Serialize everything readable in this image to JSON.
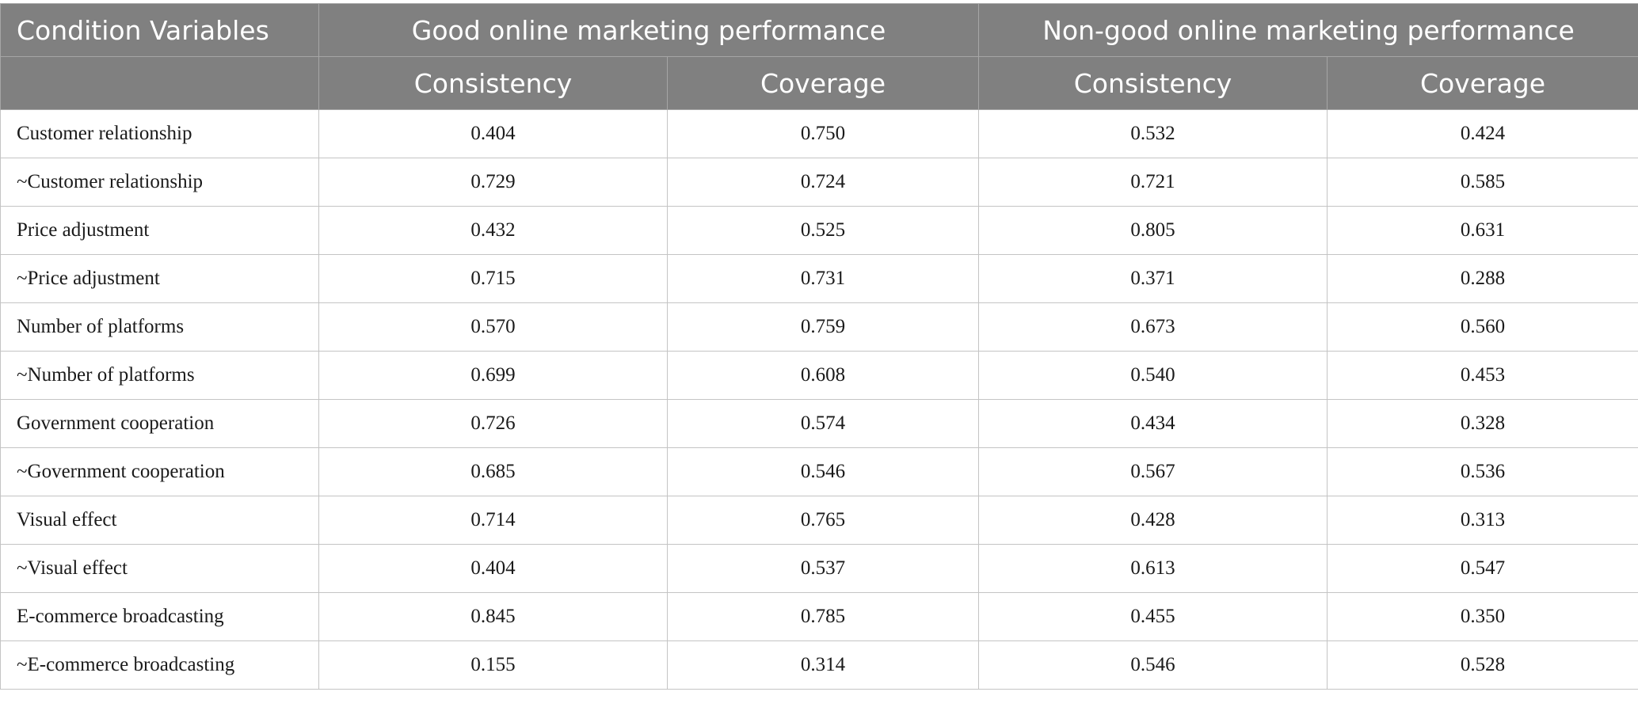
{
  "table": {
    "header": {
      "condition_variables": "Condition Variables",
      "group_good": "Good online marketing performance",
      "group_nongood": "Non-good online marketing performance",
      "good_consistency": "Consistency",
      "good_coverage": "Coverage",
      "nongood_consistency": "Consistency",
      "nongood_coverage": "Coverage"
    },
    "rows": [
      {
        "variable": "Customer relationship",
        "good_consistency": "0.404",
        "good_coverage": "0.750",
        "nongood_consistency": "0.532",
        "nongood_coverage": "0.424"
      },
      {
        "variable": "~Customer relationship",
        "good_consistency": "0.729",
        "good_coverage": "0.724",
        "nongood_consistency": "0.721",
        "nongood_coverage": "0.585"
      },
      {
        "variable": "Price adjustment",
        "good_consistency": "0.432",
        "good_coverage": "0.525",
        "nongood_consistency": "0.805",
        "nongood_coverage": "0.631"
      },
      {
        "variable": "~Price adjustment",
        "good_consistency": "0.715",
        "good_coverage": "0.731",
        "nongood_consistency": "0.371",
        "nongood_coverage": "0.288"
      },
      {
        "variable": "Number of platforms",
        "good_consistency": "0.570",
        "good_coverage": "0.759",
        "nongood_consistency": "0.673",
        "nongood_coverage": "0.560"
      },
      {
        "variable": "~Number of platforms",
        "good_consistency": "0.699",
        "good_coverage": "0.608",
        "nongood_consistency": "0.540",
        "nongood_coverage": "0.453"
      },
      {
        "variable": "Government cooperation",
        "good_consistency": "0.726",
        "good_coverage": "0.574",
        "nongood_consistency": "0.434",
        "nongood_coverage": "0.328"
      },
      {
        "variable": "~Government cooperation",
        "good_consistency": "0.685",
        "good_coverage": "0.546",
        "nongood_consistency": "0.567",
        "nongood_coverage": "0.536"
      },
      {
        "variable": "Visual effect",
        "good_consistency": "0.714",
        "good_coverage": "0.765",
        "nongood_consistency": "0.428",
        "nongood_coverage": "0.313"
      },
      {
        "variable": "~Visual effect",
        "good_consistency": "0.404",
        "good_coverage": "0.537",
        "nongood_consistency": "0.613",
        "nongood_coverage": "0.547"
      },
      {
        "variable": "E-commerce broadcasting",
        "good_consistency": "0.845",
        "good_coverage": "0.785",
        "nongood_consistency": "0.455",
        "nongood_coverage": "0.350"
      },
      {
        "variable": "~E-commerce broadcasting",
        "good_consistency": "0.155",
        "good_coverage": "0.314",
        "nongood_consistency": "0.546",
        "nongood_coverage": "0.528"
      }
    ]
  },
  "colors": {
    "header_background": "#808080",
    "header_text": "#ffffff",
    "body_text": "#1a1a1a",
    "grid_line": "#c4c4c4"
  }
}
